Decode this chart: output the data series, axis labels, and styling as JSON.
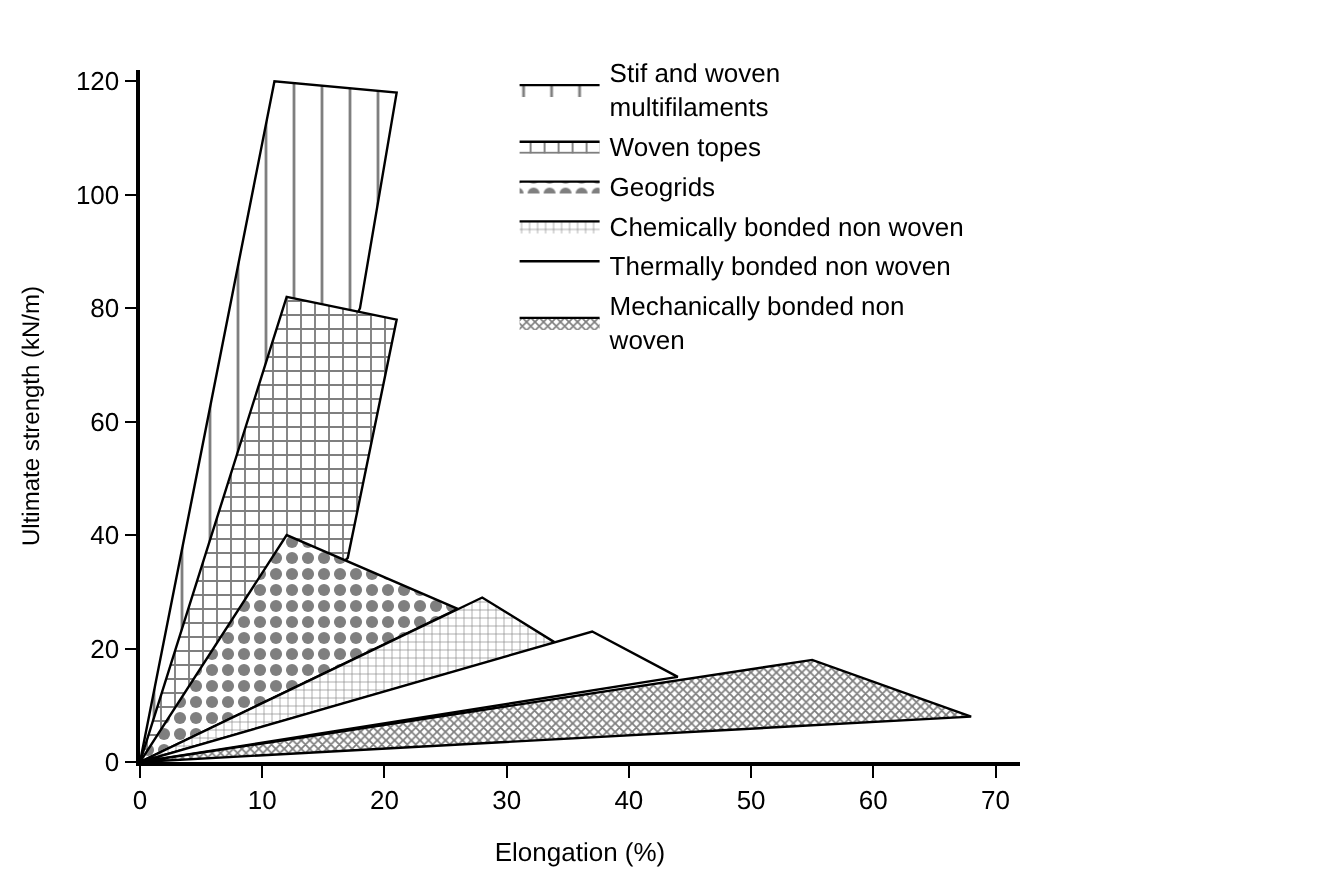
{
  "chart_data": {
    "type": "area",
    "xlabel": "Elongation (%)",
    "ylabel": "Ultimate strength (kN/m)",
    "xlim": [
      0,
      72
    ],
    "ylim": [
      0,
      122
    ],
    "xticks": [
      0,
      10,
      20,
      30,
      40,
      50,
      60,
      70
    ],
    "yticks": [
      0,
      20,
      40,
      60,
      80,
      100,
      120
    ],
    "legend": "top right",
    "series": [
      {
        "name": "Stif and woven multifilaments",
        "color": "#000000",
        "x": [
          0,
          11,
          21,
          18,
          0
        ],
        "values": [
          0,
          120,
          118,
          80,
          0
        ]
      },
      {
        "name": "Woven topes",
        "color": "#000000",
        "x": [
          0,
          12,
          21,
          17,
          0
        ],
        "values": [
          0,
          82,
          78,
          36,
          0
        ]
      },
      {
        "name": "Geogrids",
        "color": "#000000",
        "x": [
          0,
          12,
          26,
          0
        ],
        "values": [
          0,
          40,
          27,
          0
        ]
      },
      {
        "name": "Chemically bonded non woven",
        "color": "#000000",
        "x": [
          0,
          28,
          34,
          0
        ],
        "values": [
          0,
          29,
          21,
          0
        ]
      },
      {
        "name": "Thermally bonded non woven",
        "color": "#000000",
        "x": [
          0,
          37,
          44,
          0
        ],
        "values": [
          0,
          23,
          15,
          0
        ]
      },
      {
        "name": "Mechanically bonded non woven",
        "color": "#000000",
        "x": [
          0,
          55,
          68,
          0
        ],
        "values": [
          0,
          18,
          8,
          0
        ]
      }
    ]
  }
}
